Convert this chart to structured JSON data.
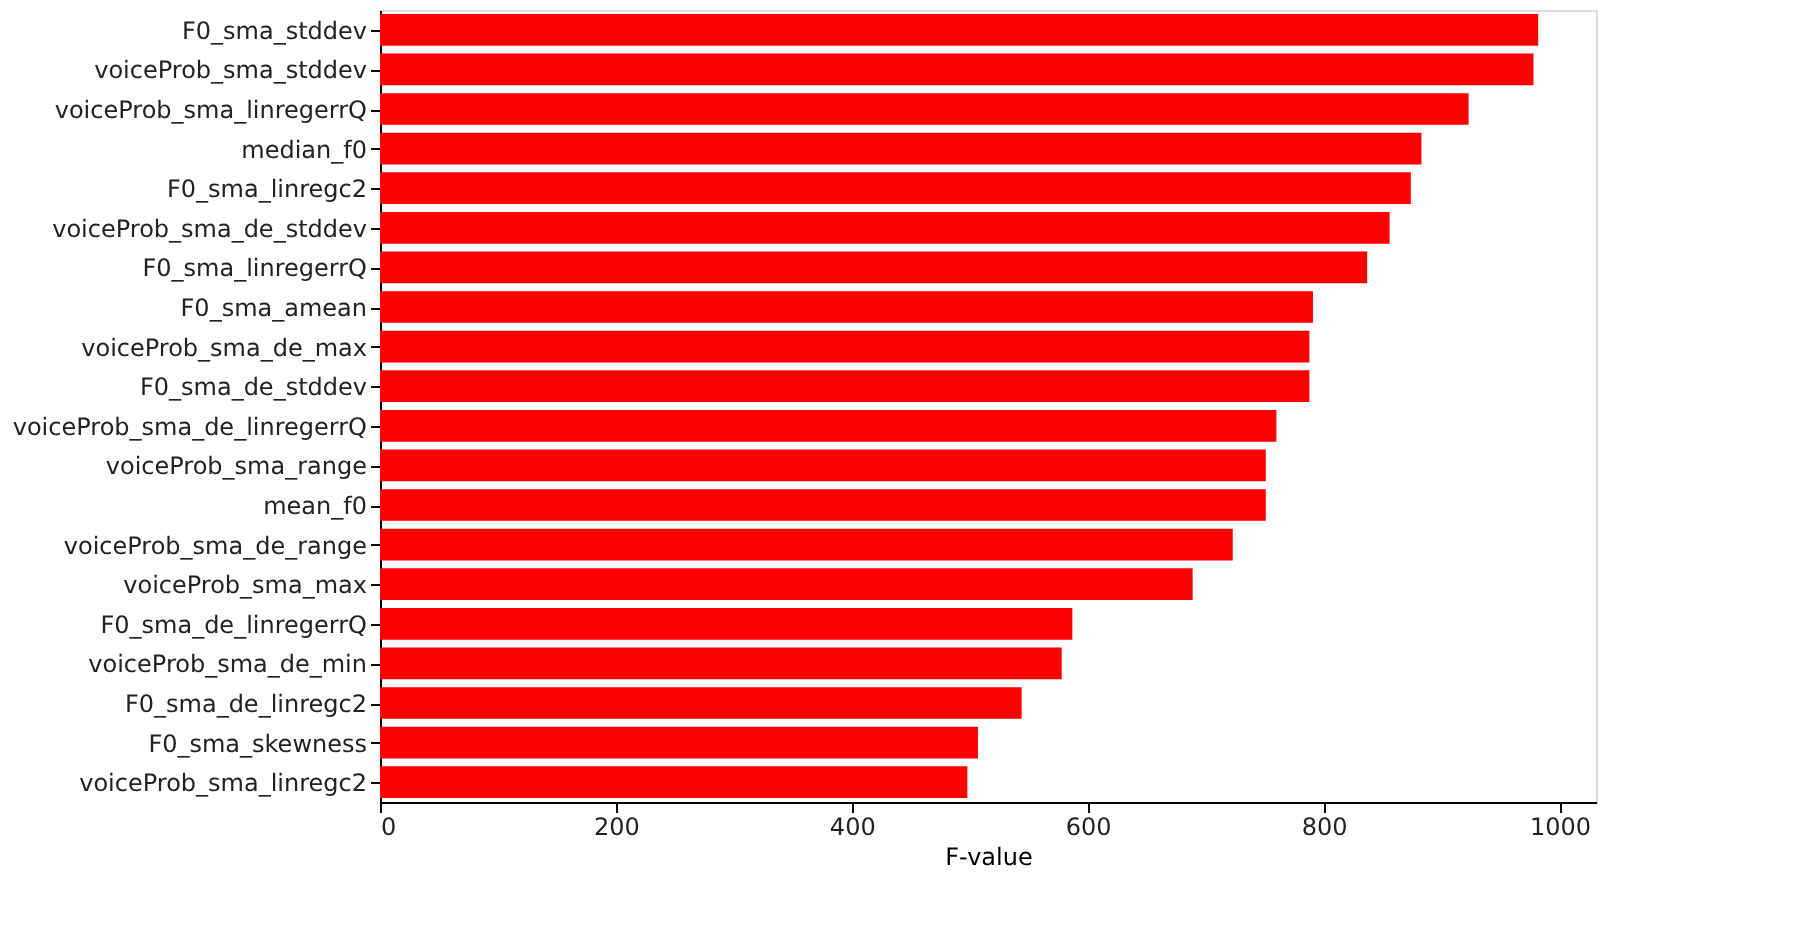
{
  "chart_data": {
    "type": "bar",
    "orientation": "horizontal",
    "xlabel": "F-value",
    "categories": [
      "F0_sma_stddev",
      "voiceProb_sma_stddev",
      "voiceProb_sma_linregerrQ",
      "median_f0",
      "F0_sma_linregc2",
      "voiceProb_sma_de_stddev",
      "F0_sma_linregerrQ",
      "F0_sma_amean",
      "voiceProb_sma_de_max",
      "F0_sma_de_stddev",
      "voiceProb_sma_de_linregerrQ",
      "voiceProb_sma_range",
      "mean_f0",
      "voiceProb_sma_de_range",
      "voiceProb_sma_max",
      "F0_sma_de_linregerrQ",
      "voiceProb_sma_de_min",
      "F0_sma_de_linregc2",
      "F0_sma_skewness",
      "voiceProb_sma_linregc2"
    ],
    "values": [
      982,
      978,
      923,
      883,
      874,
      856,
      837,
      791,
      788,
      788,
      760,
      751,
      751,
      723,
      689,
      587,
      578,
      544,
      507,
      498
    ],
    "color": "#ff0000",
    "xlim": [
      0,
      1031
    ],
    "xticks": [
      0,
      200,
      400,
      600,
      800,
      1000
    ],
    "grid": false
  }
}
